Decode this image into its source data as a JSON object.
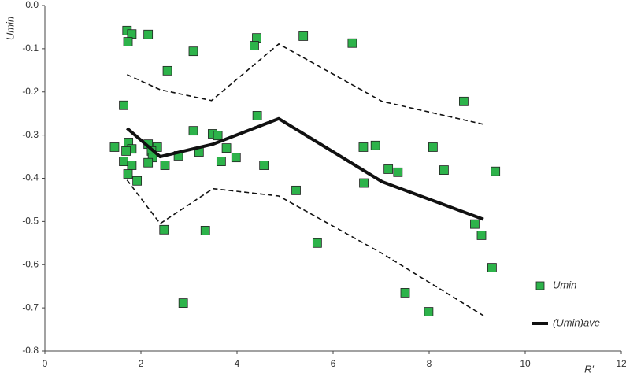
{
  "chart_data": {
    "type": "scatter",
    "xlabel": "R′",
    "ylabel": "Umin",
    "xlim": [
      0,
      12
    ],
    "ylim": [
      -0.8,
      0
    ],
    "xticks": [
      0,
      2,
      4,
      6,
      8,
      10,
      12
    ],
    "yticks": [
      {
        "value": 0,
        "label": "0.0"
      },
      -0.1,
      -0.2,
      -0.3,
      -0.4,
      -0.5,
      -0.6,
      -0.7,
      -0.8
    ],
    "series": [
      {
        "name": "Umin",
        "type": "scatter",
        "color": "#2db34a",
        "x": [
          1.45,
          1.71,
          1.81,
          1.73,
          2.15,
          3.09,
          2.55,
          1.64,
          4.41,
          4.36,
          5.38,
          6.4,
          8.72,
          4.42,
          3.09,
          3.49,
          3.6,
          1.74,
          2.15,
          2.34,
          1.81,
          1.69,
          2.22,
          2.24,
          2.78,
          3.21,
          3.78,
          3.98,
          3.67,
          1.64,
          1.81,
          2.15,
          2.5,
          4.56,
          1.73,
          1.92,
          5.23,
          6.63,
          6.88,
          7.15,
          7.35,
          8.08,
          8.31,
          9.38,
          6.64,
          2.48,
          3.34,
          5.67,
          8.95,
          9.09,
          9.31,
          7.5,
          7.99,
          2.88
        ],
        "values": [
          -0.328,
          -0.058,
          -0.066,
          -0.084,
          -0.067,
          -0.106,
          -0.151,
          -0.231,
          -0.075,
          -0.093,
          -0.071,
          -0.087,
          -0.222,
          -0.255,
          -0.29,
          -0.297,
          -0.301,
          -0.317,
          -0.321,
          -0.328,
          -0.332,
          -0.337,
          -0.337,
          -0.352,
          -0.348,
          -0.339,
          -0.33,
          -0.352,
          -0.361,
          -0.361,
          -0.37,
          -0.364,
          -0.37,
          -0.37,
          -0.39,
          -0.406,
          -0.428,
          -0.328,
          -0.324,
          -0.379,
          -0.386,
          -0.328,
          -0.381,
          -0.384,
          -0.411,
          -0.519,
          -0.521,
          -0.55,
          -0.506,
          -0.532,
          -0.607,
          -0.665,
          -0.709,
          -0.689
        ]
      },
      {
        "name": "(Umin)ave",
        "type": "line",
        "color": "#111111",
        "x": [
          1.71,
          2.4,
          3.5,
          4.87,
          7.02,
          9.13
        ],
        "values": [
          -0.284,
          -0.35,
          -0.321,
          -0.262,
          -0.408,
          -0.495
        ]
      },
      {
        "type": "dashed",
        "color": "#111111",
        "x": [
          1.71,
          2.4,
          3.47,
          4.87,
          7.02,
          9.13
        ],
        "values": [
          -0.16,
          -0.195,
          -0.22,
          -0.089,
          -0.222,
          -0.275
        ]
      },
      {
        "type": "dashed",
        "color": "#111111",
        "x": [
          1.71,
          2.4,
          3.5,
          4.87,
          7.02,
          9.13
        ],
        "values": [
          -0.404,
          -0.505,
          -0.424,
          -0.441,
          -0.574,
          -0.718
        ]
      }
    ]
  }
}
